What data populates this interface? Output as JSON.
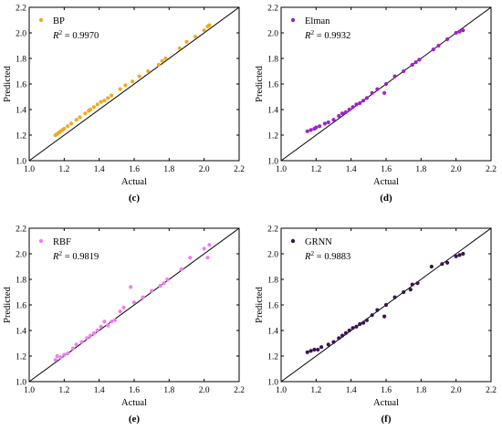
{
  "chart_data": [
    {
      "type": "scatter",
      "panel_label": "(c)",
      "legend": "BP",
      "r2_label": "R",
      "r2_sup": "2",
      "r2_value": " = 0.9970",
      "color": "#F2A81D",
      "xlabel": "Actual",
      "ylabel": "Predicted",
      "xlim": [
        1.0,
        2.2
      ],
      "ylim": [
        1.0,
        2.2
      ],
      "xticks": [
        "1.0",
        "1.2",
        "1.4",
        "1.6",
        "1.8",
        "2.0",
        "2.2"
      ],
      "yticks": [
        "1.0",
        "1.2",
        "1.4",
        "1.6",
        "1.8",
        "2.0",
        "2.2"
      ],
      "reference_line": "y = x",
      "points": [
        [
          1.15,
          1.2
        ],
        [
          1.16,
          1.21
        ],
        [
          1.17,
          1.22
        ],
        [
          1.18,
          1.23
        ],
        [
          1.19,
          1.24
        ],
        [
          1.2,
          1.25
        ],
        [
          1.22,
          1.27
        ],
        [
          1.24,
          1.29
        ],
        [
          1.27,
          1.32
        ],
        [
          1.29,
          1.34
        ],
        [
          1.32,
          1.37
        ],
        [
          1.34,
          1.39
        ],
        [
          1.35,
          1.4
        ],
        [
          1.37,
          1.42
        ],
        [
          1.39,
          1.44
        ],
        [
          1.41,
          1.46
        ],
        [
          1.43,
          1.47
        ],
        [
          1.45,
          1.49
        ],
        [
          1.47,
          1.51
        ],
        [
          1.52,
          1.56
        ],
        [
          1.55,
          1.59
        ],
        [
          1.59,
          1.62
        ],
        [
          1.63,
          1.66
        ],
        [
          1.68,
          1.7
        ],
        [
          1.74,
          1.75
        ],
        [
          1.76,
          1.78
        ],
        [
          1.78,
          1.8
        ],
        [
          1.86,
          1.88
        ],
        [
          1.9,
          1.93
        ],
        [
          1.95,
          1.97
        ],
        [
          2.0,
          2.02
        ],
        [
          2.02,
          2.05
        ],
        [
          2.03,
          2.06
        ]
      ]
    },
    {
      "type": "scatter",
      "panel_label": "(d)",
      "legend": "Elman",
      "r2_label": "R",
      "r2_sup": "2",
      "r2_value": " = 0.9932",
      "color": "#A020C8",
      "xlabel": "Actual",
      "ylabel": "Predicted",
      "xlim": [
        1.0,
        2.2
      ],
      "ylim": [
        1.0,
        2.2
      ],
      "xticks": [
        "1.0",
        "1.2",
        "1.4",
        "1.6",
        "1.8",
        "2.0",
        "2.2"
      ],
      "yticks": [
        "1.0",
        "1.2",
        "1.4",
        "1.6",
        "1.8",
        "2.0",
        "2.2"
      ],
      "reference_line": "y = x",
      "points": [
        [
          1.15,
          1.23
        ],
        [
          1.17,
          1.24
        ],
        [
          1.19,
          1.25
        ],
        [
          1.2,
          1.26
        ],
        [
          1.22,
          1.27
        ],
        [
          1.25,
          1.29
        ],
        [
          1.27,
          1.3
        ],
        [
          1.3,
          1.32
        ],
        [
          1.33,
          1.35
        ],
        [
          1.35,
          1.37
        ],
        [
          1.37,
          1.38
        ],
        [
          1.39,
          1.4
        ],
        [
          1.41,
          1.42
        ],
        [
          1.43,
          1.44
        ],
        [
          1.45,
          1.45
        ],
        [
          1.47,
          1.47
        ],
        [
          1.49,
          1.49
        ],
        [
          1.52,
          1.53
        ],
        [
          1.55,
          1.56
        ],
        [
          1.59,
          1.53
        ],
        [
          1.6,
          1.6
        ],
        [
          1.65,
          1.66
        ],
        [
          1.7,
          1.7
        ],
        [
          1.75,
          1.75
        ],
        [
          1.77,
          1.77
        ],
        [
          1.79,
          1.79
        ],
        [
          1.87,
          1.87
        ],
        [
          1.9,
          1.9
        ],
        [
          1.95,
          1.95
        ],
        [
          2.0,
          2.0
        ],
        [
          2.02,
          2.01
        ],
        [
          2.04,
          2.02
        ]
      ]
    },
    {
      "type": "scatter",
      "panel_label": "(e)",
      "legend": "RBF",
      "r2_label": "R",
      "r2_sup": "2",
      "r2_value": " = 0.9819",
      "color": "#F07CF0",
      "xlabel": "Actual",
      "ylabel": "Predicted",
      "xlim": [
        1.0,
        2.2
      ],
      "ylim": [
        1.0,
        2.2
      ],
      "xticks": [
        "1.0",
        "1.2",
        "1.4",
        "1.6",
        "1.8",
        "2.0",
        "2.2"
      ],
      "yticks": [
        "1.0",
        "1.2",
        "1.4",
        "1.6",
        "1.8",
        "2.0",
        "2.2"
      ],
      "reference_line": "y = x",
      "points": [
        [
          1.15,
          1.17
        ],
        [
          1.16,
          1.2
        ],
        [
          1.18,
          1.19
        ],
        [
          1.2,
          1.21
        ],
        [
          1.22,
          1.22
        ],
        [
          1.25,
          1.26
        ],
        [
          1.27,
          1.29
        ],
        [
          1.3,
          1.31
        ],
        [
          1.33,
          1.34
        ],
        [
          1.35,
          1.36
        ],
        [
          1.37,
          1.38
        ],
        [
          1.39,
          1.4
        ],
        [
          1.41,
          1.43
        ],
        [
          1.43,
          1.47
        ],
        [
          1.45,
          1.44
        ],
        [
          1.47,
          1.47
        ],
        [
          1.49,
          1.48
        ],
        [
          1.52,
          1.55
        ],
        [
          1.54,
          1.58
        ],
        [
          1.58,
          1.74
        ],
        [
          1.6,
          1.62
        ],
        [
          1.65,
          1.66
        ],
        [
          1.7,
          1.71
        ],
        [
          1.75,
          1.75
        ],
        [
          1.77,
          1.77
        ],
        [
          1.79,
          1.8
        ],
        [
          1.87,
          1.88
        ],
        [
          1.92,
          1.97
        ],
        [
          2.0,
          2.04
        ],
        [
          2.02,
          1.97
        ],
        [
          2.03,
          2.07
        ]
      ]
    },
    {
      "type": "scatter",
      "panel_label": "(f)",
      "legend": "GRNN",
      "r2_label": "R",
      "r2_sup": "2",
      "r2_value": " = 0.9883",
      "color": "#3A1450",
      "xlabel": "Actual",
      "ylabel": "Predicted",
      "xlim": [
        1.0,
        2.2
      ],
      "ylim": [
        1.0,
        2.2
      ],
      "xticks": [
        "1.0",
        "1.2",
        "1.4",
        "1.6",
        "1.8",
        "2.0",
        "2.2"
      ],
      "yticks": [
        "1.0",
        "1.2",
        "1.4",
        "1.6",
        "1.8",
        "2.0",
        "2.2"
      ],
      "reference_line": "y = x",
      "points": [
        [
          1.15,
          1.23
        ],
        [
          1.17,
          1.24
        ],
        [
          1.19,
          1.25
        ],
        [
          1.21,
          1.25
        ],
        [
          1.23,
          1.27
        ],
        [
          1.27,
          1.29
        ],
        [
          1.3,
          1.31
        ],
        [
          1.33,
          1.34
        ],
        [
          1.35,
          1.36
        ],
        [
          1.37,
          1.38
        ],
        [
          1.39,
          1.4
        ],
        [
          1.41,
          1.42
        ],
        [
          1.43,
          1.43
        ],
        [
          1.45,
          1.45
        ],
        [
          1.47,
          1.46
        ],
        [
          1.49,
          1.48
        ],
        [
          1.52,
          1.52
        ],
        [
          1.55,
          1.56
        ],
        [
          1.59,
          1.51
        ],
        [
          1.6,
          1.6
        ],
        [
          1.65,
          1.66
        ],
        [
          1.7,
          1.7
        ],
        [
          1.74,
          1.72
        ],
        [
          1.75,
          1.76
        ],
        [
          1.78,
          1.77
        ],
        [
          1.86,
          1.9
        ],
        [
          1.92,
          1.92
        ],
        [
          1.95,
          1.93
        ],
        [
          2.0,
          1.98
        ],
        [
          2.02,
          1.99
        ],
        [
          2.04,
          2.0
        ]
      ]
    }
  ]
}
